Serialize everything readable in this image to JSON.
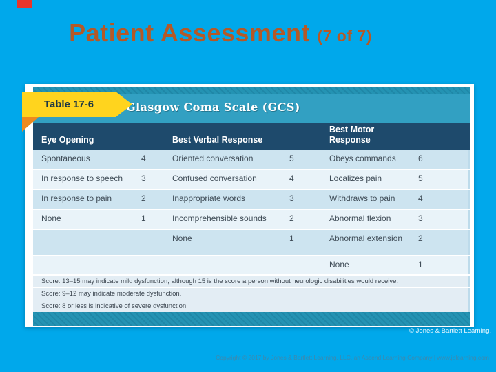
{
  "slide": {
    "title": "Patient Assessment",
    "title_suffix": "(7 of 7)",
    "credit": "© Jones & Bartlett Learning.",
    "copyright": "Copyright © 2017 by Jones & Bartlett Learning, LLC, an Ascend Learning Company | www.jblearning.com"
  },
  "table": {
    "label": "Table 17-6",
    "title": "Glasgow Coma Scale (GCS)",
    "columns": [
      "Eye Opening",
      "Best Verbal Response",
      "Best Motor Response"
    ],
    "rows": [
      {
        "cells": [
          "Spontaneous",
          "4",
          "Oriented conversation",
          "5",
          "Obeys commands",
          "6"
        ]
      },
      {
        "cells": [
          "In response to speech",
          "3",
          "Confused conversation",
          "4",
          "Localizes pain",
          "5"
        ]
      },
      {
        "cells": [
          "In response to pain",
          "2",
          "Inappropriate words",
          "3",
          "Withdraws to pain",
          "4"
        ]
      },
      {
        "cells": [
          "None",
          "1",
          "Incomprehensible sounds",
          "2",
          "Abnormal flexion",
          "3"
        ]
      },
      {
        "cells": [
          "",
          "",
          "None",
          "1",
          "Abnormal extension",
          "2"
        ]
      },
      {
        "cells": [
          "",
          "",
          "",
          "",
          "None",
          "1"
        ]
      }
    ],
    "footnotes": [
      "Score: 13–15 may indicate mild dysfunction, although 15 is the score a person without neurologic disabilities would receive.",
      "Score: 9–12 may indicate moderate dysfunction.",
      "Score: 8 or less is indicative of severe dysfunction."
    ]
  },
  "colors": {
    "background": "#00A8EB",
    "title": "#B45927",
    "banner_yellow": "#FFD41E",
    "header_teal": "#32A0C2",
    "header_navy": "#1E4A6C",
    "row_shade_dark": "#CDE4F0",
    "row_shade_light": "#E9F3F9",
    "footnote_bg": "#E3EDF4",
    "fold_orange": "#EE8A1E",
    "flag_red": "#E8352A"
  }
}
